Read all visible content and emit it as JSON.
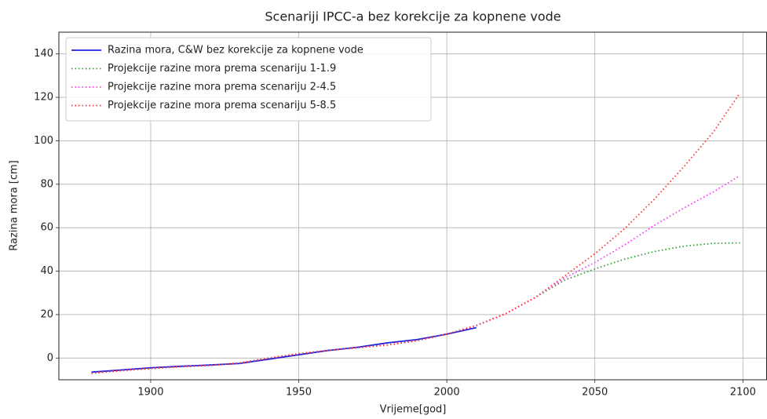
{
  "chart_data": {
    "type": "line",
    "title": "Scenariji IPCC-a bez korekcije za kopnene vode",
    "xlabel": "Vrijeme[god]",
    "ylabel": "Razina mora [cm]",
    "xlim": [
      1869,
      2108
    ],
    "ylim": [
      -10,
      150
    ],
    "xticks": [
      1900,
      1950,
      2000,
      2050,
      2100
    ],
    "yticks": [
      0,
      20,
      40,
      60,
      80,
      100,
      120,
      140
    ],
    "grid": true,
    "legend": "upper left",
    "series": [
      {
        "name": "Razina mora, C&W bez korekcije za kopnene vode",
        "color": "#2222dd",
        "linestyle": "solid",
        "x": [
          1880,
          1890,
          1900,
          1910,
          1920,
          1930,
          1940,
          1950,
          1960,
          1970,
          1980,
          1990,
          2000,
          2010
        ],
        "values": [
          -6.5,
          -5.5,
          -4.5,
          -3.8,
          -3.2,
          -2.5,
          -0.5,
          1.5,
          3.5,
          5,
          7,
          8.5,
          11,
          14
        ]
      },
      {
        "name": "Projekcije razine mora prema scenariju 1-1.9",
        "color": "#2ca02c",
        "linestyle": "dotted",
        "x": [
          1880,
          1890,
          1900,
          1910,
          1920,
          1930,
          1940,
          1950,
          1960,
          1970,
          1980,
          1990,
          2000,
          2010,
          2020,
          2030,
          2040,
          2050,
          2060,
          2070,
          2080,
          2090,
          2099
        ],
        "values": [
          -7,
          -5.8,
          -4.8,
          -4,
          -3.4,
          -2.3,
          0,
          2,
          3.5,
          4.8,
          6,
          8,
          11,
          15,
          20.5,
          28,
          36,
          41,
          45.5,
          49,
          51.5,
          52.8,
          53
        ]
      },
      {
        "name": "Projekcije razine mora prema scenariju 2-4.5",
        "color": "#ff33ff",
        "linestyle": "dotted",
        "x": [
          1880,
          1890,
          1900,
          1910,
          1920,
          1930,
          1940,
          1950,
          1960,
          1970,
          1980,
          1990,
          2000,
          2010,
          2020,
          2030,
          2040,
          2050,
          2060,
          2070,
          2080,
          2090,
          2099
        ],
        "values": [
          -7,
          -5.8,
          -4.8,
          -4,
          -3.4,
          -2.3,
          0,
          2,
          3.5,
          4.8,
          6,
          8,
          11,
          15,
          20.5,
          28,
          37,
          44,
          52,
          61,
          69,
          76.5,
          84
        ]
      },
      {
        "name": "Projekcije razine mora prema scenariju 5-8.5",
        "color": "#ff3333",
        "linestyle": "dotted",
        "x": [
          1880,
          1890,
          1900,
          1910,
          1920,
          1930,
          1940,
          1950,
          1960,
          1970,
          1980,
          1990,
          2000,
          2010,
          2020,
          2030,
          2040,
          2050,
          2060,
          2070,
          2080,
          2090,
          2099
        ],
        "values": [
          -7,
          -5.8,
          -4.8,
          -4,
          -3.4,
          -2.3,
          0,
          2,
          3.5,
          4.8,
          6,
          8,
          11,
          15,
          20.5,
          28,
          38,
          48,
          59.5,
          73,
          88,
          104,
          122
        ]
      }
    ]
  }
}
